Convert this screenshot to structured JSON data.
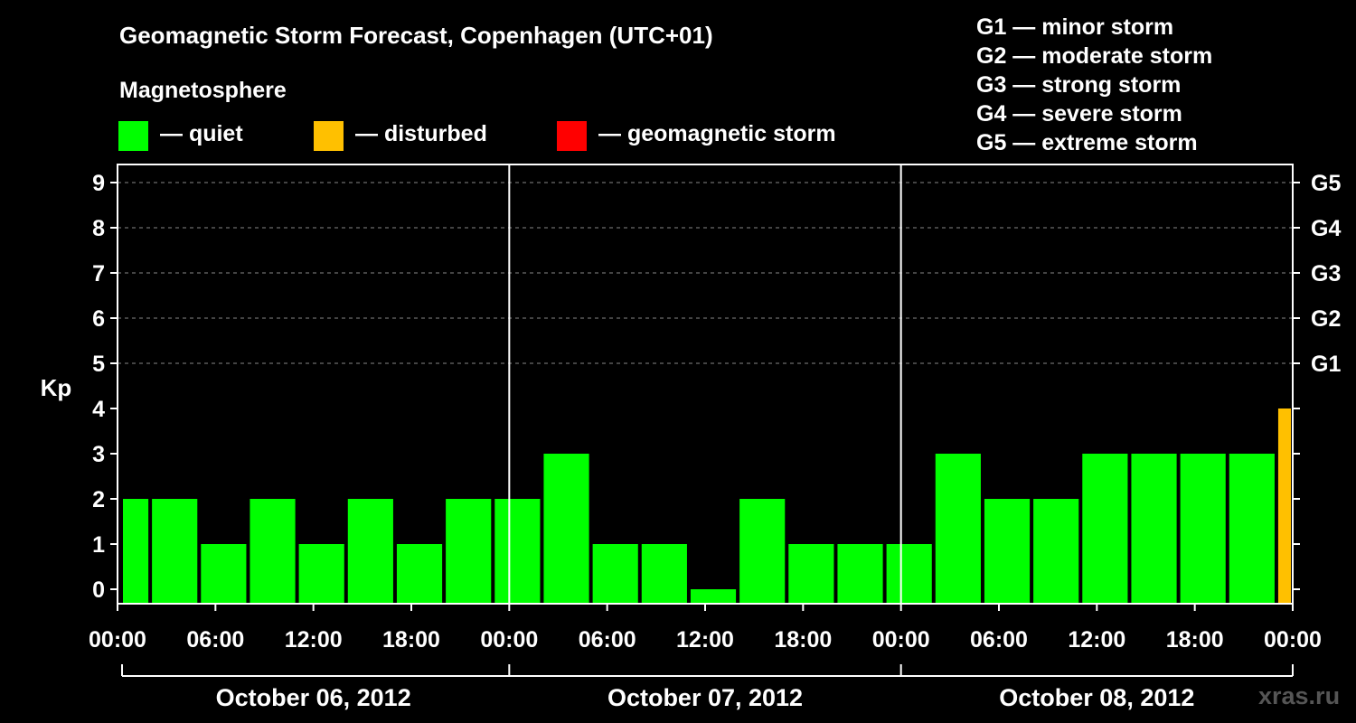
{
  "title": "Geomagnetic Storm Forecast, Copenhagen (UTC+01)",
  "legend": {
    "heading": "Magnetosphere",
    "items": [
      {
        "label": "— quiet",
        "color": "#00ff00"
      },
      {
        "label": "— disturbed",
        "color": "#ffc000"
      },
      {
        "label": "— geomagnetic storm",
        "color": "#ff0000"
      }
    ]
  },
  "g_scale": [
    "G1 — minor storm",
    "G2 — moderate storm",
    "G3 — strong storm",
    "G4 — severe storm",
    "G5 — extreme storm"
  ],
  "watermark": "xras.ru",
  "chart_data": {
    "type": "bar",
    "ylabel": "Kp",
    "ylim": [
      0,
      9
    ],
    "yticks": [
      "0",
      "1",
      "2",
      "3",
      "4",
      "5",
      "6",
      "7",
      "8",
      "9"
    ],
    "right_ticks": [
      {
        "kp": 5,
        "label": "G1"
      },
      {
        "kp": 6,
        "label": "G2"
      },
      {
        "kp": 7,
        "label": "G3"
      },
      {
        "kp": 8,
        "label": "G4"
      },
      {
        "kp": 9,
        "label": "G5"
      }
    ],
    "xtick_labels": [
      "00:00",
      "06:00",
      "12:00",
      "18:00",
      "00:00",
      "06:00",
      "12:00",
      "18:00",
      "00:00",
      "06:00",
      "12:00",
      "18:00",
      "00:00"
    ],
    "days": [
      "October 06, 2012",
      "October 07, 2012",
      "October 08, 2012"
    ],
    "bar_start_hour": -1,
    "bar_width_hours": 3,
    "values": [
      2,
      2,
      1,
      2,
      1,
      2,
      1,
      2,
      2,
      3,
      1,
      1,
      0,
      2,
      1,
      1,
      1,
      3,
      2,
      2,
      3,
      3,
      3,
      3,
      4
    ],
    "colors": {
      "quiet": "#00ff00",
      "disturbed": "#ffc000",
      "storm": "#ff0000"
    },
    "grid": "dashed at Kp 5-9"
  }
}
